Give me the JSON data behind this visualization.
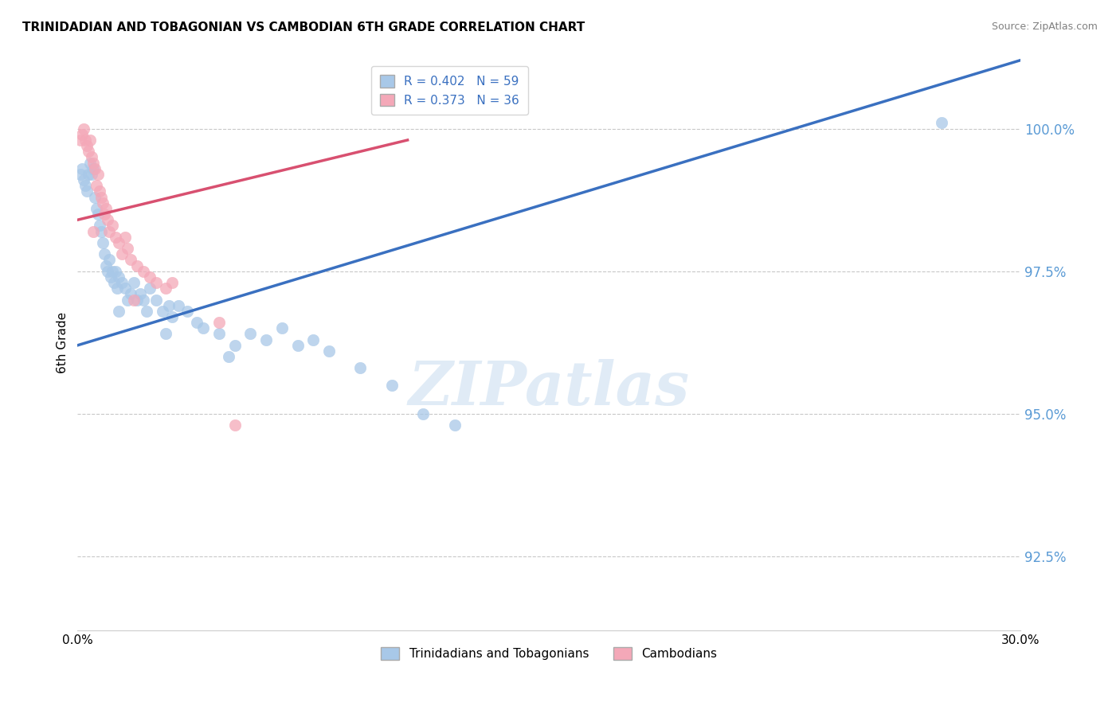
{
  "title": "TRINIDADIAN AND TOBAGONIAN VS CAMBODIAN 6TH GRADE CORRELATION CHART",
  "source": "Source: ZipAtlas.com",
  "ylabel": "6th Grade",
  "xlim": [
    0.0,
    30.0
  ],
  "ylim": [
    91.2,
    101.3
  ],
  "ytick_values": [
    92.5,
    95.0,
    97.5,
    100.0
  ],
  "legend_R1": "R = 0.402",
  "legend_N1": "N = 59",
  "legend_R2": "R = 0.373",
  "legend_N2": "N = 36",
  "legend_label1": "Trinidadians and Tobagonians",
  "legend_label2": "Cambodians",
  "watermark": "ZIPatlas",
  "blue_color": "#a8c8e8",
  "pink_color": "#f4a8b8",
  "trendline_blue": "#3a70c0",
  "trendline_pink": "#d85070",
  "axis_color": "#5b9bd5",
  "grid_color": "#c8c8c8",
  "blue_scatter": [
    [
      0.1,
      99.2
    ],
    [
      0.15,
      99.3
    ],
    [
      0.2,
      99.1
    ],
    [
      0.25,
      99.0
    ],
    [
      0.3,
      98.9
    ],
    [
      0.35,
      99.2
    ],
    [
      0.4,
      99.4
    ],
    [
      0.45,
      99.2
    ],
    [
      0.5,
      99.3
    ],
    [
      0.55,
      98.8
    ],
    [
      0.6,
      98.6
    ],
    [
      0.65,
      98.5
    ],
    [
      0.7,
      98.3
    ],
    [
      0.75,
      98.2
    ],
    [
      0.8,
      98.0
    ],
    [
      0.85,
      97.8
    ],
    [
      0.9,
      97.6
    ],
    [
      0.95,
      97.5
    ],
    [
      1.0,
      97.7
    ],
    [
      1.05,
      97.4
    ],
    [
      1.1,
      97.5
    ],
    [
      1.15,
      97.3
    ],
    [
      1.2,
      97.5
    ],
    [
      1.25,
      97.2
    ],
    [
      1.3,
      97.4
    ],
    [
      1.4,
      97.3
    ],
    [
      1.5,
      97.2
    ],
    [
      1.6,
      97.0
    ],
    [
      1.7,
      97.1
    ],
    [
      1.8,
      97.3
    ],
    [
      1.9,
      97.0
    ],
    [
      2.0,
      97.1
    ],
    [
      2.1,
      97.0
    ],
    [
      2.2,
      96.8
    ],
    [
      2.3,
      97.2
    ],
    [
      2.5,
      97.0
    ],
    [
      2.7,
      96.8
    ],
    [
      2.9,
      96.9
    ],
    [
      3.0,
      96.7
    ],
    [
      3.2,
      96.9
    ],
    [
      3.5,
      96.8
    ],
    [
      3.8,
      96.6
    ],
    [
      4.0,
      96.5
    ],
    [
      4.5,
      96.4
    ],
    [
      5.0,
      96.2
    ],
    [
      5.5,
      96.4
    ],
    [
      6.0,
      96.3
    ],
    [
      6.5,
      96.5
    ],
    [
      7.0,
      96.2
    ],
    [
      7.5,
      96.3
    ],
    [
      8.0,
      96.1
    ],
    [
      9.0,
      95.8
    ],
    [
      10.0,
      95.5
    ],
    [
      11.0,
      95.0
    ],
    [
      12.0,
      94.8
    ],
    [
      4.8,
      96.0
    ],
    [
      1.3,
      96.8
    ],
    [
      2.8,
      96.4
    ],
    [
      27.5,
      100.1
    ]
  ],
  "pink_scatter": [
    [
      0.1,
      99.8
    ],
    [
      0.15,
      99.9
    ],
    [
      0.2,
      100.0
    ],
    [
      0.25,
      99.8
    ],
    [
      0.3,
      99.7
    ],
    [
      0.35,
      99.6
    ],
    [
      0.4,
      99.8
    ],
    [
      0.45,
      99.5
    ],
    [
      0.5,
      99.4
    ],
    [
      0.55,
      99.3
    ],
    [
      0.6,
      99.0
    ],
    [
      0.65,
      99.2
    ],
    [
      0.7,
      98.9
    ],
    [
      0.75,
      98.8
    ],
    [
      0.8,
      98.7
    ],
    [
      0.85,
      98.5
    ],
    [
      0.9,
      98.6
    ],
    [
      0.95,
      98.4
    ],
    [
      1.0,
      98.2
    ],
    [
      1.1,
      98.3
    ],
    [
      1.2,
      98.1
    ],
    [
      1.3,
      98.0
    ],
    [
      1.4,
      97.8
    ],
    [
      1.5,
      98.1
    ],
    [
      1.6,
      97.9
    ],
    [
      1.7,
      97.7
    ],
    [
      1.9,
      97.6
    ],
    [
      2.1,
      97.5
    ],
    [
      2.3,
      97.4
    ],
    [
      2.5,
      97.3
    ],
    [
      2.8,
      97.2
    ],
    [
      3.0,
      97.3
    ],
    [
      4.5,
      96.6
    ],
    [
      5.0,
      94.8
    ],
    [
      1.8,
      97.0
    ],
    [
      0.5,
      98.2
    ]
  ],
  "blue_trend_x": [
    0.0,
    30.0
  ],
  "blue_trend_y": [
    96.2,
    101.2
  ],
  "pink_trend_x": [
    0.0,
    10.5
  ],
  "pink_trend_y": [
    98.4,
    99.8
  ]
}
